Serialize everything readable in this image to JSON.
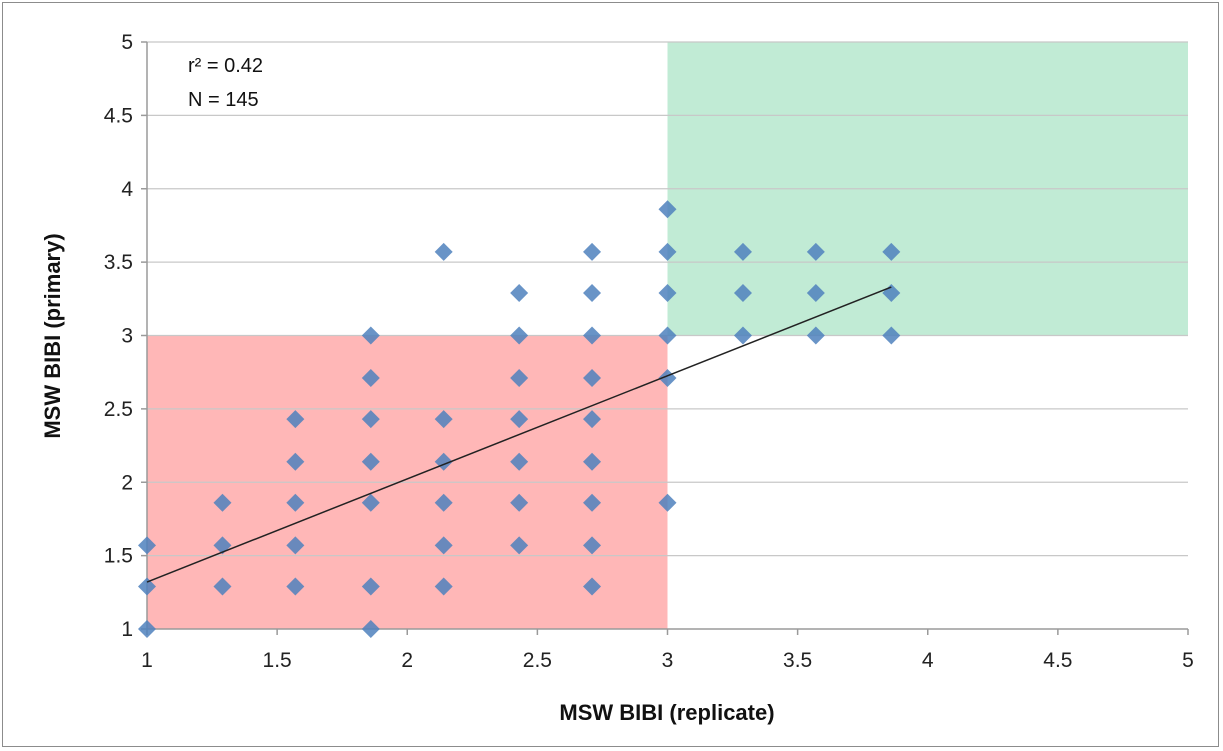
{
  "chart_data": {
    "type": "scatter",
    "xlabel": "MSW BIBI (replicate)",
    "ylabel": "MSW BIBI (primary)",
    "xlim": [
      1,
      5
    ],
    "ylim": [
      1,
      5
    ],
    "x_ticks": [
      "1",
      "1.5",
      "2",
      "2.5",
      "3",
      "3.5",
      "4",
      "4.5",
      "5"
    ],
    "y_ticks": [
      "1",
      "1.5",
      "2",
      "2.5",
      "3",
      "3.5",
      "4",
      "4.5",
      "5"
    ],
    "grid": "horizontal",
    "annotations": [
      "r² = 0.42",
      "N = 145"
    ],
    "regions": [
      {
        "x": [
          1,
          3
        ],
        "y": [
          1,
          3
        ],
        "color": "#ff9999"
      },
      {
        "x": [
          3,
          5
        ],
        "y": [
          3,
          5
        ],
        "color": "#a7e2c3"
      }
    ],
    "trendline": {
      "x": [
        1,
        3.86
      ],
      "y": [
        1.32,
        3.33
      ],
      "color": "#222222"
    },
    "marker_color": "#4f81bd",
    "points": [
      [
        1.0,
        1.0
      ],
      [
        1.0,
        1.29
      ],
      [
        1.0,
        1.57
      ],
      [
        1.29,
        1.29
      ],
      [
        1.29,
        1.57
      ],
      [
        1.29,
        1.86
      ],
      [
        1.57,
        1.29
      ],
      [
        1.57,
        1.57
      ],
      [
        1.57,
        1.86
      ],
      [
        1.57,
        2.14
      ],
      [
        1.57,
        2.43
      ],
      [
        1.86,
        1.0
      ],
      [
        1.86,
        1.29
      ],
      [
        1.86,
        1.86
      ],
      [
        1.86,
        2.14
      ],
      [
        1.86,
        2.43
      ],
      [
        1.86,
        2.71
      ],
      [
        1.86,
        3.0
      ],
      [
        2.14,
        1.29
      ],
      [
        2.14,
        1.57
      ],
      [
        2.14,
        1.86
      ],
      [
        2.14,
        2.14
      ],
      [
        2.14,
        2.43
      ],
      [
        2.14,
        3.57
      ],
      [
        2.43,
        1.57
      ],
      [
        2.43,
        1.86
      ],
      [
        2.43,
        2.14
      ],
      [
        2.43,
        2.43
      ],
      [
        2.43,
        2.71
      ],
      [
        2.43,
        3.0
      ],
      [
        2.43,
        3.29
      ],
      [
        2.71,
        1.29
      ],
      [
        2.71,
        1.57
      ],
      [
        2.71,
        1.86
      ],
      [
        2.71,
        2.14
      ],
      [
        2.71,
        2.43
      ],
      [
        2.71,
        2.71
      ],
      [
        2.71,
        3.0
      ],
      [
        2.71,
        3.29
      ],
      [
        2.71,
        3.57
      ],
      [
        3.0,
        1.86
      ],
      [
        3.0,
        2.71
      ],
      [
        3.0,
        3.0
      ],
      [
        3.0,
        3.29
      ],
      [
        3.0,
        3.57
      ],
      [
        3.0,
        3.86
      ],
      [
        3.29,
        3.0
      ],
      [
        3.29,
        3.29
      ],
      [
        3.29,
        3.57
      ],
      [
        3.57,
        3.0
      ],
      [
        3.57,
        3.29
      ],
      [
        3.57,
        3.57
      ],
      [
        3.86,
        3.0
      ],
      [
        3.86,
        3.29
      ],
      [
        3.86,
        3.57
      ]
    ]
  }
}
